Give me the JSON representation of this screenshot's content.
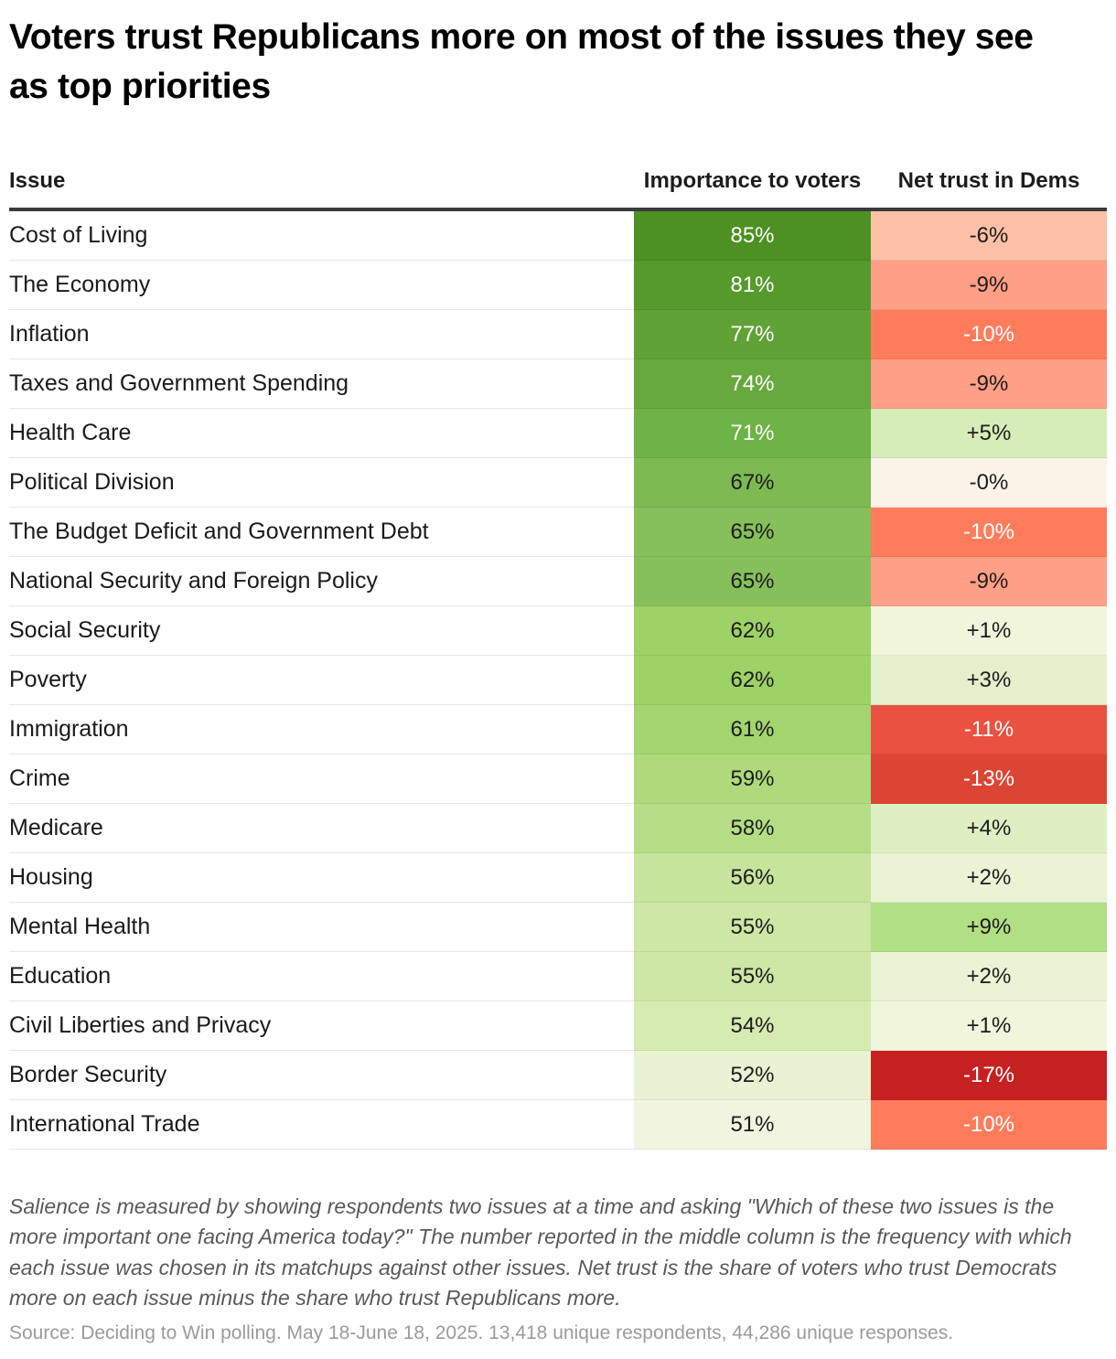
{
  "title": "Voters trust Republicans more on most of the issues they see as top priorities",
  "table": {
    "columns": {
      "issue": "Issue",
      "importance": "Importance to voters",
      "trust": "Net trust in Dems"
    },
    "rows": [
      {
        "issue": "Cost of Living",
        "importance": "85%",
        "trust": "-6%",
        "importance_bg": "#4c9121",
        "importance_fg": "#ffffff",
        "trust_bg": "#fec0a7",
        "trust_fg": "#1c1c1c"
      },
      {
        "issue": "The Economy",
        "importance": "81%",
        "trust": "-9%",
        "importance_bg": "#569a2b",
        "importance_fg": "#ffffff",
        "trust_bg": "#fe9f86",
        "trust_fg": "#1c1c1c"
      },
      {
        "issue": "Inflation",
        "importance": "77%",
        "trust": "-10%",
        "importance_bg": "#61a236",
        "importance_fg": "#ffffff",
        "trust_bg": "#fe7c5c",
        "trust_fg": "#ffffff"
      },
      {
        "issue": "Taxes and Government Spending",
        "importance": "74%",
        "trust": "-9%",
        "importance_bg": "#67a93d",
        "importance_fg": "#ffffff",
        "trust_bg": "#fe9f86",
        "trust_fg": "#1c1c1c"
      },
      {
        "issue": "Health Care",
        "importance": "71%",
        "trust": "+5%",
        "importance_bg": "#6db345",
        "importance_fg": "#ffffff",
        "trust_bg": "#d6edb8",
        "trust_fg": "#1c1c1c"
      },
      {
        "issue": "Political Division",
        "importance": "67%",
        "trust": "-0%",
        "importance_bg": "#7dba52",
        "importance_fg": "#1c1c1c",
        "trust_bg": "#faf3e7",
        "trust_fg": "#1c1c1c"
      },
      {
        "issue": "The Budget Deficit and Government Debt",
        "importance": "65%",
        "trust": "-10%",
        "importance_bg": "#85c05a",
        "importance_fg": "#1c1c1c",
        "trust_bg": "#fe7c5c",
        "trust_fg": "#ffffff"
      },
      {
        "issue": "National Security and Foreign Policy",
        "importance": "65%",
        "trust": "-9%",
        "importance_bg": "#85c05a",
        "importance_fg": "#1c1c1c",
        "trust_bg": "#fe9f86",
        "trust_fg": "#1c1c1c"
      },
      {
        "issue": "Social Security",
        "importance": "62%",
        "trust": "+1%",
        "importance_bg": "#9dd267",
        "importance_fg": "#1c1c1c",
        "trust_bg": "#f0f5db",
        "trust_fg": "#1c1c1c"
      },
      {
        "issue": "Poverty",
        "importance": "62%",
        "trust": "+3%",
        "importance_bg": "#9dd267",
        "importance_fg": "#1c1c1c",
        "trust_bg": "#e4f0cb",
        "trust_fg": "#1c1c1c"
      },
      {
        "issue": "Immigration",
        "importance": "61%",
        "trust": "-11%",
        "importance_bg": "#a3d56e",
        "importance_fg": "#1c1c1c",
        "trust_bg": "#ea5140",
        "trust_fg": "#ffffff"
      },
      {
        "issue": "Crime",
        "importance": "59%",
        "trust": "-13%",
        "importance_bg": "#aeda7c",
        "importance_fg": "#1c1c1c",
        "trust_bg": "#dc4533",
        "trust_fg": "#ffffff"
      },
      {
        "issue": "Medicare",
        "importance": "58%",
        "trust": "+4%",
        "importance_bg": "#b5dd85",
        "importance_fg": "#1c1c1c",
        "trust_bg": "#def0c2",
        "trust_fg": "#1c1c1c"
      },
      {
        "issue": "Housing",
        "importance": "56%",
        "trust": "+2%",
        "importance_bg": "#c6e49b",
        "importance_fg": "#1c1c1c",
        "trust_bg": "#eaf3d4",
        "trust_fg": "#1c1c1c"
      },
      {
        "issue": "Mental Health",
        "importance": "55%",
        "trust": "+9%",
        "importance_bg": "#cde7a4",
        "importance_fg": "#1c1c1c",
        "trust_bg": "#b1df83",
        "trust_fg": "#1c1c1c"
      },
      {
        "issue": "Education",
        "importance": "55%",
        "trust": "+2%",
        "importance_bg": "#cde7a4",
        "importance_fg": "#1c1c1c",
        "trust_bg": "#eaf3d4",
        "trust_fg": "#1c1c1c"
      },
      {
        "issue": "Civil Liberties and Privacy",
        "importance": "54%",
        "trust": "+1%",
        "importance_bg": "#d5ebb0",
        "importance_fg": "#1c1c1c",
        "trust_bg": "#f0f5db",
        "trust_fg": "#1c1c1c"
      },
      {
        "issue": "Border Security",
        "importance": "52%",
        "trust": "-17%",
        "importance_bg": "#e9f2d2",
        "importance_fg": "#1c1c1c",
        "trust_bg": "#c62121",
        "trust_fg": "#ffffff"
      },
      {
        "issue": "International Trade",
        "importance": "51%",
        "trust": "-10%",
        "importance_bg": "#f1f5e0",
        "importance_fg": "#1c1c1c",
        "trust_bg": "#fe7c5c",
        "trust_fg": "#ffffff"
      }
    ]
  },
  "chart_data": {
    "type": "heatmap",
    "title": "Voters trust Republicans more on most of the issues they see as top priorities",
    "categories": [
      "Cost of Living",
      "The Economy",
      "Inflation",
      "Taxes and Government Spending",
      "Health Care",
      "Political Division",
      "The Budget Deficit and Government Debt",
      "National Security and Foreign Policy",
      "Social Security",
      "Poverty",
      "Immigration",
      "Crime",
      "Medicare",
      "Housing",
      "Mental Health",
      "Education",
      "Civil Liberties and Privacy",
      "Border Security",
      "International Trade"
    ],
    "series": [
      {
        "name": "Importance to voters",
        "unit": "%",
        "values": [
          85,
          81,
          77,
          74,
          71,
          67,
          65,
          65,
          62,
          62,
          61,
          59,
          58,
          56,
          55,
          55,
          54,
          52,
          51
        ]
      },
      {
        "name": "Net trust in Dems",
        "unit": "percentage points",
        "values": [
          -6,
          -9,
          -10,
          -9,
          5,
          0,
          -10,
          -9,
          1,
          3,
          -11,
          -13,
          4,
          2,
          9,
          2,
          1,
          -17,
          -10
        ]
      }
    ],
    "layout_hints": {
      "legend": "none",
      "grid": "row dividers only",
      "color_scale": "green = high importance / net trust Dems positive, red = net trust Dems negative, cream = neutral"
    }
  },
  "colors": {
    "header_rule": "#3a3a3a",
    "row_divider": "#e6e6e6",
    "green_max": "#4c9121",
    "red_max": "#c62121",
    "neutral": "#faf3e7"
  },
  "footnote": "Salience is measured by showing respondents two issues at a time and asking \"Which of these two issues is the more important one facing America today?\" The number reported in the middle column is the frequency with which each issue was chosen in its matchups against other issues. Net trust is the share of voters who trust Democrats more on each issue minus the share who trust Republicans more.",
  "source": "Source: Deciding to Win polling. May 18-June 18, 2025. 13,418 unique respondents, 44,286 unique responses."
}
